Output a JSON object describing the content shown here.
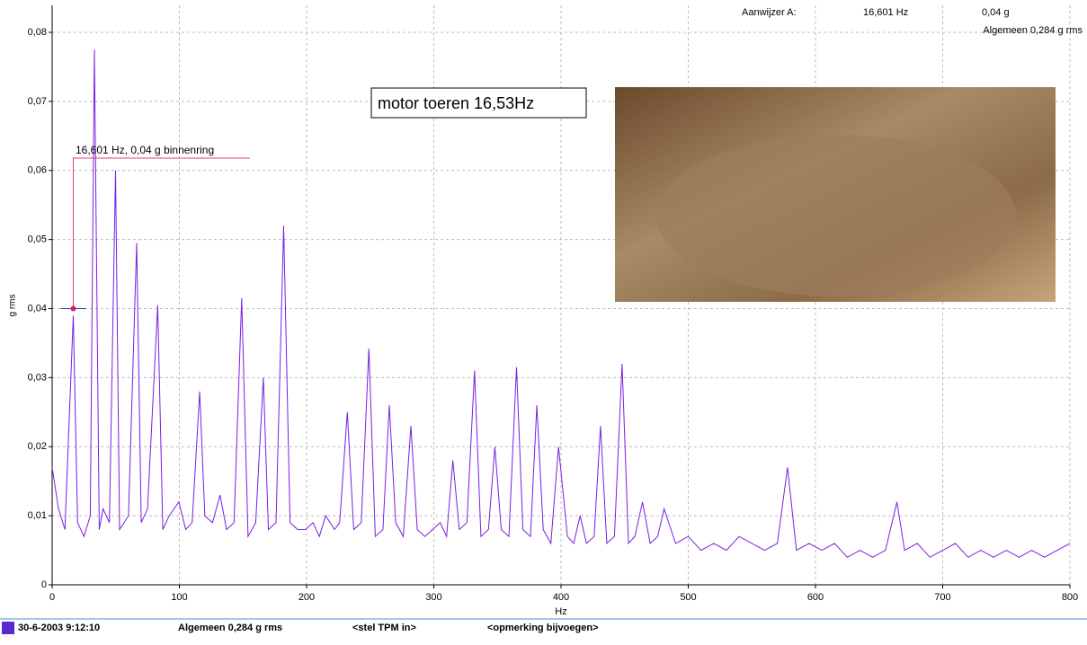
{
  "chart_data": {
    "type": "line",
    "x": [
      0,
      5,
      10,
      16.6,
      20,
      25,
      30,
      33.2,
      37,
      40,
      45,
      49.8,
      53,
      60,
      66.4,
      70,
      75,
      83,
      87,
      92,
      99.6,
      105,
      110,
      116,
      120,
      126,
      132,
      137,
      143,
      149,
      154,
      160,
      166,
      170,
      176,
      182,
      187,
      193,
      199,
      205,
      210,
      215,
      222,
      226,
      232,
      237,
      243,
      249,
      254,
      260,
      265,
      270,
      276,
      282,
      287,
      293,
      299,
      305,
      310,
      315,
      320,
      326,
      332,
      337,
      343,
      348,
      353,
      359,
      365,
      370,
      376,
      381,
      386,
      392,
      398,
      405,
      410,
      415,
      420,
      426,
      431,
      436,
      442,
      448,
      453,
      458,
      464,
      470,
      476,
      481,
      490,
      500,
      510,
      520,
      530,
      540,
      550,
      560,
      570,
      578,
      585,
      595,
      605,
      615,
      625,
      635,
      645,
      655,
      664,
      670,
      680,
      690,
      700,
      710,
      720,
      730,
      740,
      750,
      760,
      770,
      780,
      790,
      800
    ],
    "series": [
      {
        "name": "g rms",
        "color": "#7a1fe0",
        "values": [
          0.017,
          0.011,
          0.008,
          0.039,
          0.009,
          0.007,
          0.01,
          0.0775,
          0.008,
          0.011,
          0.009,
          0.06,
          0.008,
          0.01,
          0.0495,
          0.009,
          0.011,
          0.0405,
          0.008,
          0.01,
          0.012,
          0.008,
          0.009,
          0.028,
          0.01,
          0.009,
          0.013,
          0.008,
          0.009,
          0.0415,
          0.007,
          0.009,
          0.03,
          0.008,
          0.009,
          0.052,
          0.009,
          0.008,
          0.008,
          0.009,
          0.007,
          0.01,
          0.008,
          0.009,
          0.025,
          0.008,
          0.009,
          0.0342,
          0.007,
          0.008,
          0.026,
          0.009,
          0.007,
          0.023,
          0.008,
          0.007,
          0.008,
          0.009,
          0.007,
          0.018,
          0.008,
          0.009,
          0.031,
          0.007,
          0.008,
          0.02,
          0.008,
          0.007,
          0.0315,
          0.008,
          0.007,
          0.026,
          0.008,
          0.006,
          0.02,
          0.007,
          0.006,
          0.01,
          0.006,
          0.007,
          0.023,
          0.006,
          0.007,
          0.032,
          0.006,
          0.007,
          0.012,
          0.006,
          0.007,
          0.011,
          0.006,
          0.007,
          0.005,
          0.006,
          0.005,
          0.007,
          0.006,
          0.005,
          0.006,
          0.017,
          0.005,
          0.006,
          0.005,
          0.006,
          0.004,
          0.005,
          0.004,
          0.005,
          0.012,
          0.005,
          0.006,
          0.004,
          0.005,
          0.006,
          0.004,
          0.005,
          0.004,
          0.005,
          0.004,
          0.005,
          0.004,
          0.005,
          0.006
        ]
      }
    ],
    "xlim": [
      0,
      800
    ],
    "ylim": [
      0,
      0.08
    ],
    "xticks": [
      0,
      100,
      200,
      300,
      400,
      500,
      600,
      700,
      800
    ],
    "yticks": [
      {
        "value": 0,
        "label": "0"
      },
      {
        "value": 0.01,
        "label": "0,01"
      },
      {
        "value": 0.02,
        "label": "0,02"
      },
      {
        "value": 0.03,
        "label": "0,03"
      },
      {
        "value": 0.04,
        "label": "0,04"
      },
      {
        "value": 0.05,
        "label": "0,05"
      },
      {
        "value": 0.06,
        "label": "0,06"
      },
      {
        "value": 0.07,
        "label": "0,07"
      },
      {
        "value": 0.08,
        "label": "0,08"
      }
    ],
    "grid": true,
    "xlabel": "Hz",
    "ylabel": "g rms",
    "cursor": {
      "x": 16.601,
      "y": 0.04,
      "label": "Aanwijzer A:",
      "x_label": "16,601 Hz",
      "y_label": "0,04 g",
      "annotation": "16,601 Hz, 0,04 g binnenring"
    },
    "overall": "Algemeen 0,284 g rms",
    "note": "motor toeren 16,53Hz",
    "status": {
      "date": "30-6-2003 9:12:10",
      "overall": "Algemeen 0,284 g rms",
      "tpm": "<stel TPM in>",
      "remark": "<opmerking bijvoegen>"
    }
  }
}
